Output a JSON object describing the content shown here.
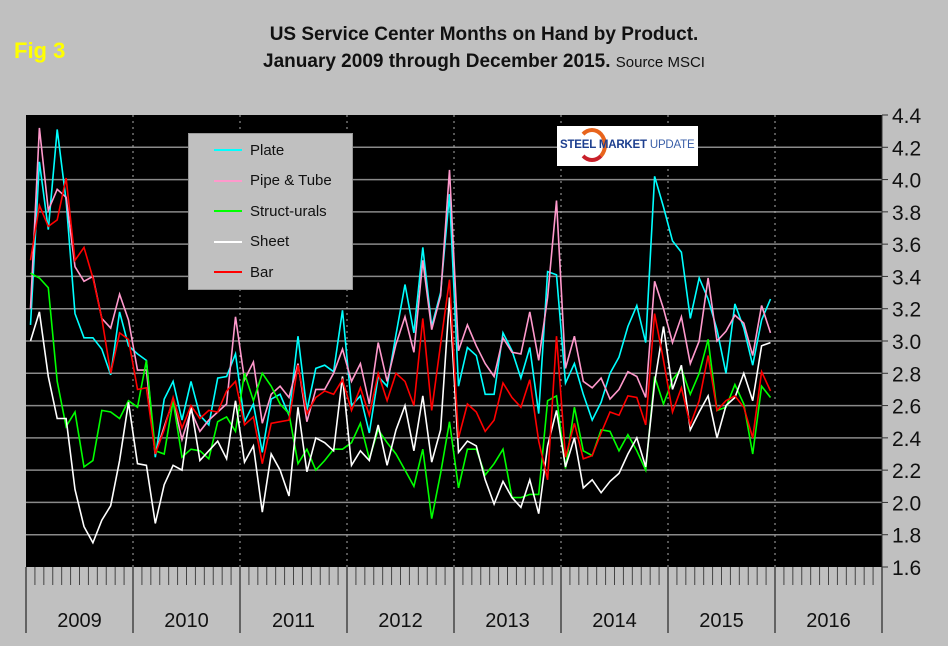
{
  "figure_label": "Fig 3",
  "logo_text": "STEEL MARKET UPDATE",
  "chart_data": {
    "type": "line",
    "title": "US Service Center Months on Hand by Product.",
    "subtitle": "January 2009 through December 2015.",
    "source": "Source MSCI",
    "x_start": "2009-01",
    "x_end": "2015-12",
    "x_frequency": "monthly",
    "x_tick_labels": [
      "2009",
      "2010",
      "2011",
      "2012",
      "2013",
      "2014",
      "2015",
      "2016"
    ],
    "xlim": [
      "2009-01",
      "2016-12"
    ],
    "ylim": [
      1.6,
      4.4
    ],
    "y_ticks": [
      "1.6",
      "1.8",
      "2.0",
      "2.2",
      "2.4",
      "2.6",
      "2.8",
      "3.0",
      "3.2",
      "3.4",
      "3.6",
      "3.8",
      "4.0",
      "4.2",
      "4.4"
    ],
    "y_axis_side": "right",
    "grid": true,
    "legend_placement": "top-left",
    "background": "#000000",
    "series": [
      {
        "name": "Plate",
        "color": "#00ffff",
        "values": [
          3.1,
          4.11,
          3.69,
          4.31,
          3.87,
          3.17,
          3.02,
          3.02,
          2.95,
          2.79,
          3.18,
          2.97,
          2.92,
          2.88,
          2.28,
          2.64,
          2.75,
          2.51,
          2.75,
          2.54,
          2.48,
          2.77,
          2.78,
          2.92,
          2.5,
          2.61,
          2.31,
          2.64,
          2.67,
          2.54,
          3.03,
          2.57,
          2.83,
          2.85,
          2.81,
          3.19,
          2.6,
          2.66,
          2.43,
          2.78,
          2.72,
          3.04,
          3.35,
          3.05,
          3.58,
          3.09,
          3.3,
          3.91,
          2.72,
          2.96,
          2.91,
          2.67,
          2.67,
          3.05,
          2.94,
          2.77,
          2.96,
          2.55,
          3.43,
          3.41,
          2.74,
          2.86,
          2.67,
          2.51,
          2.62,
          2.8,
          2.9,
          3.09,
          3.22,
          2.99,
          4.02,
          3.83,
          3.62,
          3.55,
          3.14,
          3.39,
          3.26,
          3.07,
          2.8,
          3.23,
          3.08,
          2.85,
          3.13,
          3.26
        ]
      },
      {
        "name": "Pipe & Tube",
        "color": "#ff99cc",
        "values": [
          3.2,
          4.32,
          3.81,
          3.94,
          3.89,
          3.46,
          3.37,
          3.4,
          3.14,
          3.08,
          3.29,
          3.13,
          2.82,
          2.82,
          2.3,
          2.47,
          2.63,
          2.39,
          2.57,
          2.44,
          2.51,
          2.56,
          2.61,
          3.15,
          2.76,
          2.87,
          2.49,
          2.67,
          2.72,
          2.65,
          2.86,
          2.5,
          2.7,
          2.7,
          2.8,
          2.95,
          2.75,
          2.86,
          2.61,
          2.99,
          2.75,
          2.98,
          3.15,
          2.93,
          3.5,
          3.07,
          3.28,
          4.06,
          2.94,
          3.1,
          2.97,
          2.86,
          2.78,
          3.02,
          2.93,
          2.92,
          3.18,
          2.88,
          3.27,
          3.87,
          2.83,
          3.03,
          2.75,
          2.71,
          2.77,
          2.64,
          2.7,
          2.81,
          2.78,
          2.65,
          3.37,
          3.2,
          2.99,
          3.15,
          2.86,
          3.0,
          3.39,
          3.0,
          3.06,
          3.16,
          3.11,
          2.91,
          3.22,
          3.05
        ]
      },
      {
        "name": "Struct-urals",
        "color": "#00ff00",
        "values": [
          3.42,
          3.39,
          3.33,
          2.75,
          2.47,
          2.56,
          2.22,
          2.26,
          2.57,
          2.56,
          2.52,
          2.63,
          2.59,
          2.88,
          2.32,
          2.3,
          2.63,
          2.28,
          2.33,
          2.32,
          2.27,
          2.5,
          2.53,
          2.44,
          2.8,
          2.63,
          2.8,
          2.72,
          2.61,
          2.55,
          2.24,
          2.33,
          2.2,
          2.26,
          2.33,
          2.33,
          2.37,
          2.49,
          2.27,
          2.45,
          2.37,
          2.3,
          2.2,
          2.1,
          2.33,
          1.9,
          2.18,
          2.5,
          2.09,
          2.33,
          2.33,
          2.17,
          2.24,
          2.33,
          2.03,
          2.03,
          2.05,
          2.05,
          2.63,
          2.66,
          2.21,
          2.59,
          2.32,
          2.29,
          2.45,
          2.44,
          2.32,
          2.42,
          2.32,
          2.2,
          2.78,
          2.61,
          2.76,
          2.83,
          2.67,
          2.8,
          3.01,
          2.57,
          2.59,
          2.73,
          2.61,
          2.3,
          2.72,
          2.65
        ]
      },
      {
        "name": "Sheet",
        "color": "#ffffff",
        "values": [
          3.0,
          3.18,
          2.78,
          2.52,
          2.52,
          2.08,
          1.85,
          1.75,
          1.89,
          1.98,
          2.26,
          2.62,
          2.24,
          2.23,
          1.87,
          2.11,
          2.23,
          2.2,
          2.6,
          2.26,
          2.32,
          2.38,
          2.27,
          2.63,
          2.25,
          2.35,
          1.94,
          2.3,
          2.2,
          2.04,
          2.59,
          2.19,
          2.4,
          2.37,
          2.32,
          2.78,
          2.23,
          2.32,
          2.26,
          2.48,
          2.23,
          2.45,
          2.6,
          2.32,
          2.66,
          2.25,
          2.45,
          3.27,
          2.31,
          2.38,
          2.35,
          2.14,
          1.99,
          2.13,
          2.03,
          1.97,
          2.14,
          1.93,
          2.35,
          2.57,
          2.22,
          2.4,
          2.09,
          2.14,
          2.06,
          2.13,
          2.18,
          2.3,
          2.4,
          2.22,
          2.74,
          3.09,
          2.7,
          2.85,
          2.45,
          2.56,
          2.66,
          2.4,
          2.6,
          2.65,
          2.8,
          2.63,
          2.97,
          2.99
        ]
      },
      {
        "name": "Bar",
        "color": "#ff0000",
        "values": [
          3.5,
          3.84,
          3.71,
          3.75,
          4.01,
          3.5,
          3.58,
          3.39,
          3.14,
          2.8,
          3.05,
          3.01,
          2.7,
          2.71,
          2.3,
          2.45,
          2.65,
          2.46,
          2.6,
          2.52,
          2.57,
          2.56,
          2.69,
          2.75,
          2.48,
          2.53,
          2.24,
          2.49,
          2.5,
          2.51,
          2.85,
          2.55,
          2.65,
          2.69,
          2.67,
          2.76,
          2.57,
          2.71,
          2.54,
          2.8,
          2.63,
          2.8,
          2.75,
          2.6,
          3.14,
          2.57,
          2.98,
          3.38,
          2.4,
          2.61,
          2.56,
          2.44,
          2.51,
          2.74,
          2.65,
          2.59,
          2.76,
          2.38,
          2.14,
          3.03,
          2.28,
          2.49,
          2.27,
          2.29,
          2.43,
          2.56,
          2.54,
          2.66,
          2.65,
          2.48,
          3.17,
          2.88,
          2.56,
          2.71,
          2.48,
          2.63,
          2.91,
          2.57,
          2.63,
          2.66,
          2.59,
          2.4,
          2.81,
          2.69
        ]
      }
    ]
  }
}
